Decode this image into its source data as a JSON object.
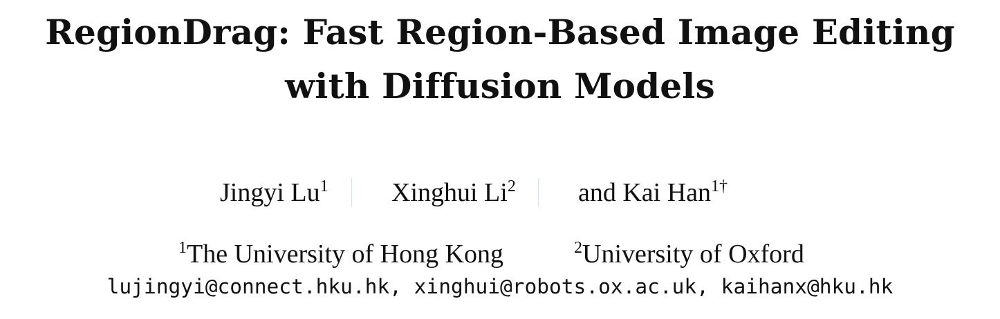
{
  "title": {
    "line1": "RegionDrag: Fast Region-Based Image Editing",
    "line2": "with Diffusion Models"
  },
  "authors": [
    {
      "name": "Jingyi Lu",
      "marks": "1"
    },
    {
      "name": "Xinghui Li",
      "marks": "2"
    },
    {
      "name": "and Kai Han",
      "marks": "1†"
    }
  ],
  "affiliations": [
    {
      "mark": "1",
      "name": "The University of Hong Kong"
    },
    {
      "mark": "2",
      "name": "University of Oxford"
    }
  ],
  "emails": "lujingyi@connect.hku.hk, xinghui@robots.ox.ac.uk, kaihanx@hku.hk"
}
